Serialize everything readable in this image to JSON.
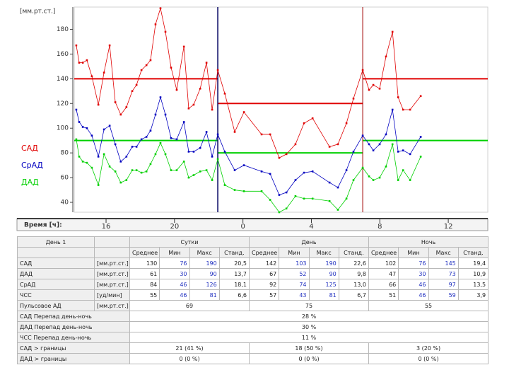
{
  "chart_data": {
    "type": "line",
    "y_label": "[мм.рт.ст.]",
    "x_label": "Время [ч]:",
    "xlim": [
      14.14,
      38.31
    ],
    "xticks": [
      16,
      20,
      {
        "value": 24,
        "label": "0"
      },
      {
        "value": 28,
        "label": "4"
      },
      {
        "value": 32,
        "label": "8"
      },
      {
        "value": 36,
        "label": "12"
      }
    ],
    "ylim": [
      32,
      198
    ],
    "yticks": [
      40,
      60,
      80,
      100,
      120,
      140,
      160,
      180
    ],
    "night_start": 22.53,
    "night_end": 31.0,
    "x": [
      14.26,
      14.43,
      14.64,
      14.88,
      15.17,
      15.55,
      15.88,
      16.21,
      16.54,
      16.86,
      17.19,
      17.53,
      17.78,
      18.07,
      18.36,
      18.6,
      18.89,
      19.18,
      19.47,
      19.8,
      20.13,
      20.55,
      20.83,
      21.12,
      21.5,
      21.87,
      22.2,
      22.53,
      22.94,
      23.52,
      24.06,
      25.09,
      25.59,
      26.12,
      26.54,
      27.07,
      27.57,
      28.07,
      29.06,
      29.55,
      30.05,
      30.46,
      31.0,
      31.37,
      31.62,
      31.99,
      32.36,
      32.74,
      33.07,
      33.36,
      33.77,
      34.39
    ],
    "series": [
      {
        "name": "САД",
        "color": "#e00000",
        "day_limit": 140,
        "night_limit": 120,
        "values": [
          167,
          153,
          153,
          155,
          142,
          119,
          145,
          167,
          121,
          111,
          117,
          130,
          135,
          147,
          151,
          155,
          184,
          197,
          178,
          149,
          131,
          166,
          116,
          119,
          132,
          153,
          115,
          147,
          128,
          97,
          113,
          95,
          95,
          76,
          79,
          87,
          104,
          108,
          85,
          87,
          104,
          124,
          147,
          131,
          135,
          132,
          158,
          178,
          125,
          115,
          115,
          126
        ]
      },
      {
        "name": "СрАД",
        "color": "#0000c0",
        "values": [
          115,
          105,
          101,
          100,
          94,
          77,
          99,
          102,
          87,
          73,
          77,
          85,
          85,
          91,
          93,
          98,
          111,
          125,
          111,
          92,
          91,
          105,
          81,
          81,
          84,
          97,
          77,
          95,
          81,
          66,
          70,
          65,
          63,
          46,
          48,
          58,
          64,
          65,
          56,
          52,
          66,
          81,
          94,
          87,
          82,
          87,
          95,
          115,
          81,
          82,
          79,
          93
        ]
      },
      {
        "name": "ДАД",
        "color": "#00d000",
        "day_limit": 90,
        "night_limit": 80,
        "values": [
          91,
          77,
          73,
          72,
          68,
          54,
          79,
          69,
          65,
          56,
          58,
          66,
          66,
          64,
          65,
          71,
          79,
          88,
          79,
          66,
          66,
          73,
          60,
          62,
          65,
          66,
          58,
          75,
          54,
          50,
          49,
          49,
          42,
          32,
          35,
          45,
          43,
          43,
          41,
          34,
          43,
          58,
          68,
          61,
          58,
          60,
          69,
          87,
          58,
          66,
          58,
          77
        ]
      }
    ]
  },
  "table": {
    "corner": "День 1",
    "groups": [
      "Сутки",
      "День",
      "Ночь"
    ],
    "columns": [
      "Среднее",
      "Мин",
      "Макс",
      "Станд."
    ],
    "stat_rows": [
      {
        "label": "САД",
        "unit": "[мм.рт.ст.]",
        "cells": [
          "130",
          "76",
          "190",
          "20,5",
          "142",
          "103",
          "190",
          "22,6",
          "102",
          "76",
          "145",
          "19,4"
        ]
      },
      {
        "label": "ДАД",
        "unit": "[мм.рт.ст.]",
        "cells": [
          "61",
          "30",
          "90",
          "13,7",
          "67",
          "52",
          "90",
          "9,8",
          "47",
          "30",
          "73",
          "10,9"
        ]
      },
      {
        "label": "СрАД",
        "unit": "[мм.рт.ст.]",
        "cells": [
          "84",
          "46",
          "126",
          "18,1",
          "92",
          "74",
          "125",
          "13,0",
          "66",
          "46",
          "97",
          "13,5"
        ]
      },
      {
        "label": "ЧСС",
        "unit": "[уд/мин]",
        "cells": [
          "55",
          "46",
          "81",
          "6,6",
          "57",
          "43",
          "81",
          "6,7",
          "51",
          "46",
          "59",
          "3,9"
        ]
      }
    ],
    "pulse_row": {
      "label": "Пульсовое АД",
      "unit": "[мм.рт.ст.]",
      "cells": [
        "69",
        "75",
        "55"
      ]
    },
    "diff_rows": [
      {
        "label": "САД Перепад день-ночь",
        "value": "28 %"
      },
      {
        "label": "ДАД Перепад день-ночь",
        "value": "30 %"
      },
      {
        "label": "ЧСС Перепад день-ночь",
        "value": "11 %"
      }
    ],
    "limit_rows": [
      {
        "label": "САД > границы",
        "cells": [
          "21 (41 %)",
          "18 (50 %)",
          "3 (20 %)"
        ]
      },
      {
        "label": "ДАД > границы",
        "cells": [
          "0 (0 %)",
          "0 (0 %)",
          "0 (0 %)"
        ]
      }
    ]
  }
}
